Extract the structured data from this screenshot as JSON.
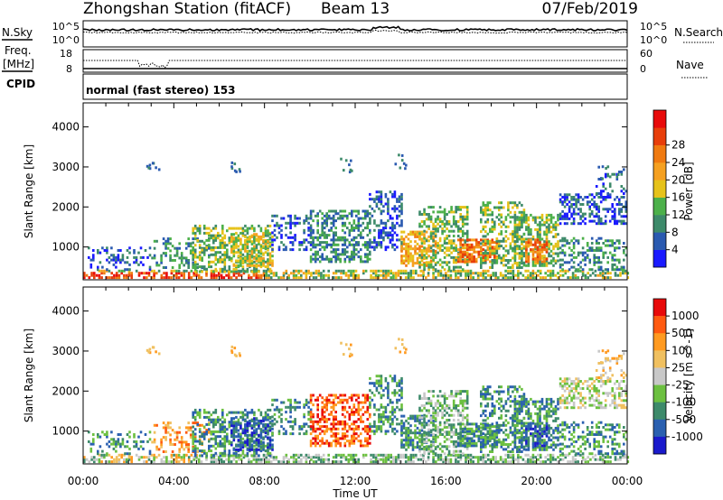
{
  "title": {
    "station": "Zhongshan Station (fitACF)",
    "beam": "Beam 13",
    "date": "07/Feb/2019"
  },
  "noise_panel": {
    "left_label": "N.Sky",
    "right_label": "N.Search",
    "left_ticks": [
      "10^5",
      "10^0"
    ],
    "right_ticks": [
      "10^5",
      "10^0"
    ]
  },
  "freq_panel": {
    "left_label_1": "Freq.",
    "left_label_2": "[MHz]",
    "left_ticks": [
      "18",
      "8"
    ],
    "right_label": "Nave",
    "right_ticks": [
      "60",
      "0"
    ]
  },
  "cpid": {
    "label": "CPID",
    "value": "normal (fast stereo) 153"
  },
  "colors": {
    "power": [
      "#1a1aff",
      "#2a5ab0",
      "#3d8a6a",
      "#4cb04a",
      "#e6c21a",
      "#f5a020",
      "#f07a10",
      "#e83e0a",
      "#e80a0a"
    ],
    "velocity": [
      "#e80a0a",
      "#ff5a10",
      "#ff9a20",
      "#f0c060",
      "#c8c8c8",
      "#6cc040",
      "#3d8a6a",
      "#2a60b0",
      "#1a1acc"
    ]
  },
  "chart_data": [
    {
      "type": "heatmap",
      "name": "power",
      "ylabel": "Slant Range [km]",
      "yticks": [
        1000,
        2000,
        3000,
        4000
      ],
      "ylim": [
        180,
        4600
      ],
      "x_range_hours": [
        0,
        24
      ],
      "colorbar": {
        "label": "Power [dB]",
        "ticks": [
          "4",
          "8",
          "12",
          "16",
          "20",
          "24",
          "28"
        ],
        "range": [
          0,
          32
        ]
      }
    },
    {
      "type": "heatmap",
      "name": "velocity",
      "ylabel": "Slant Range [km]",
      "yticks": [
        1000,
        2000,
        3000,
        4000
      ],
      "ylim": [
        180,
        4600
      ],
      "x_range_hours": [
        0,
        24
      ],
      "colorbar": {
        "label": "Velocity [m s^-1]",
        "ticks": [
          "1000",
          "500",
          "100",
          "25",
          "-25",
          "-100",
          "-500",
          "-1000"
        ]
      }
    }
  ],
  "x_axis": {
    "label": "Time UT",
    "ticks": [
      "00:00",
      "04:00",
      "08:00",
      "12:00",
      "16:00",
      "20:00",
      "00:00"
    ]
  }
}
